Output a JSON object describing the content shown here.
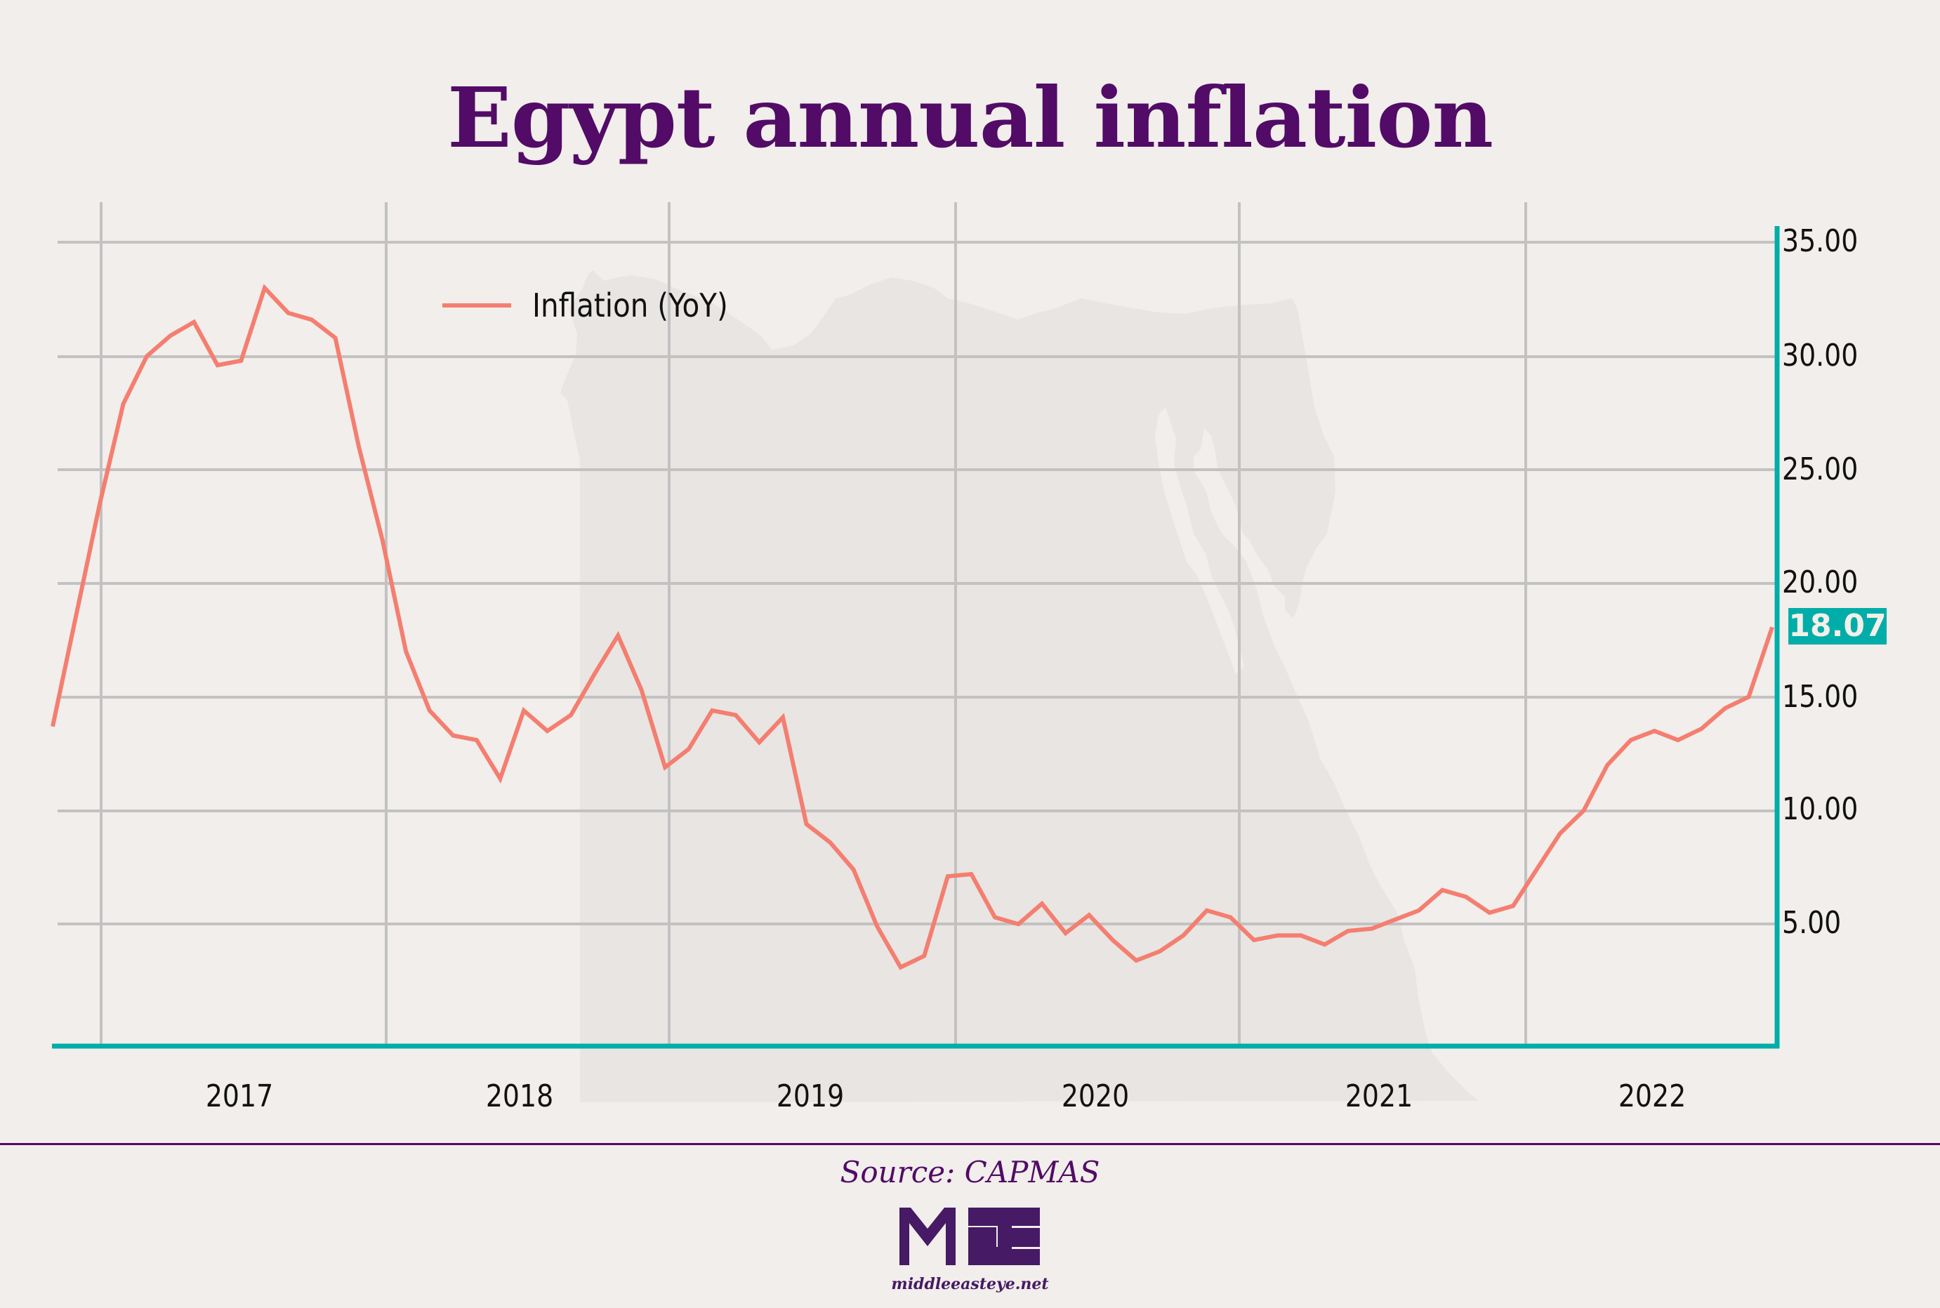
{
  "title": "Egypt annual inflation",
  "legend": {
    "label": "Inflation (YoY)",
    "color": "#f47e70"
  },
  "last_value_badge": "18.07",
  "y_axis": {
    "ticks": [
      "35.00",
      "30.00",
      "25.00",
      "20.00",
      "15.00",
      "10.00",
      "5.00"
    ]
  },
  "x_axis": {
    "ticks": [
      "2017",
      "2018",
      "2019",
      "2020",
      "2021",
      "2022"
    ]
  },
  "footer": {
    "source": "Source: CAPMAS",
    "logo_text": "MEE",
    "site": "middleeasteye.net"
  },
  "colors": {
    "background": "#f1eeeb",
    "title": "#520b66",
    "line": "#f47e70",
    "axis": "#00ada8",
    "grid": "#c2c2c2",
    "map": "#e8e5e2"
  },
  "chart_data": {
    "type": "line",
    "title": "Egypt annual inflation",
    "xlabel": "",
    "ylabel": "",
    "ylim": [
      0,
      35
    ],
    "y_ticks": [
      5,
      10,
      15,
      20,
      25,
      30,
      35
    ],
    "x_tick_labels": [
      "2017",
      "2018",
      "2019",
      "2020",
      "2021",
      "2022"
    ],
    "grid": true,
    "legend_position": "top-left",
    "frequency": "monthly",
    "series": [
      {
        "name": "Inflation (YoY)",
        "color": "#f47e70",
        "values": [
          13.7,
          18.6,
          23.5,
          27.9,
          30.0,
          30.9,
          31.5,
          29.6,
          29.8,
          33.0,
          31.9,
          31.6,
          30.8,
          26.0,
          21.9,
          17.0,
          14.4,
          13.3,
          13.1,
          11.4,
          14.4,
          13.5,
          14.2,
          16.0,
          17.7,
          15.3,
          11.9,
          12.7,
          14.4,
          14.2,
          13.0,
          14.1,
          9.4,
          8.6,
          7.4,
          4.9,
          3.1,
          3.6,
          7.1,
          7.2,
          5.3,
          5.0,
          5.9,
          4.6,
          5.4,
          4.3,
          3.4,
          3.8,
          4.5,
          5.6,
          5.3,
          4.3,
          4.5,
          4.5,
          4.1,
          4.7,
          4.8,
          5.2,
          5.6,
          6.5,
          6.2,
          5.5,
          5.8,
          7.4,
          9.0,
          10.0,
          12.0,
          13.1,
          13.5,
          13.1,
          13.6,
          14.5,
          15.0,
          18.07
        ]
      }
    ],
    "last_value": 18.07
  }
}
